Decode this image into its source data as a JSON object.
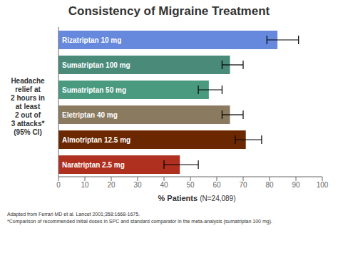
{
  "chart_data": {
    "type": "bar",
    "orientation": "horizontal",
    "title": "Consistency of Migraine Treatment",
    "categories": [
      "Rizatriptan 10 mg",
      "Sumatriptan 100 mg",
      "Sumatriptan 50 mg",
      "Eletriptan 40 mg",
      "Almotriptan 12.5 mg",
      "Naratriptan 2.5 mg"
    ],
    "values": [
      83,
      65,
      57,
      65,
      71,
      46
    ],
    "error_low": [
      4,
      3,
      4,
      3,
      4,
      6
    ],
    "error_high": [
      8,
      5,
      5,
      5,
      6,
      7
    ],
    "colors": [
      "#6688DD",
      "#4A8A78",
      "#4A9A80",
      "#8A7A60",
      "#6B2800",
      "#B03020"
    ],
    "ylabel": "Headache\nrelief at\n2 hours in\nat least\n2 out of\n3 attacks*\n(95% CI)",
    "xlabel": "% Patients",
    "xlabel_sub": "(N=24,089)",
    "xlim": [
      0,
      100
    ],
    "xticks": [
      0,
      10,
      20,
      30,
      40,
      50,
      60,
      70,
      80,
      90,
      100
    ],
    "footnotes": [
      "Adapted from Ferrari MD et al.  Lancet  2001;358:1668-1675.",
      "*Comparison of recommended initial doses in SPC and standard comparator in the meta-analysis (sumatriptan 100 mg)."
    ],
    "grid": false,
    "tick_labels": "x",
    "data_labels": false
  }
}
